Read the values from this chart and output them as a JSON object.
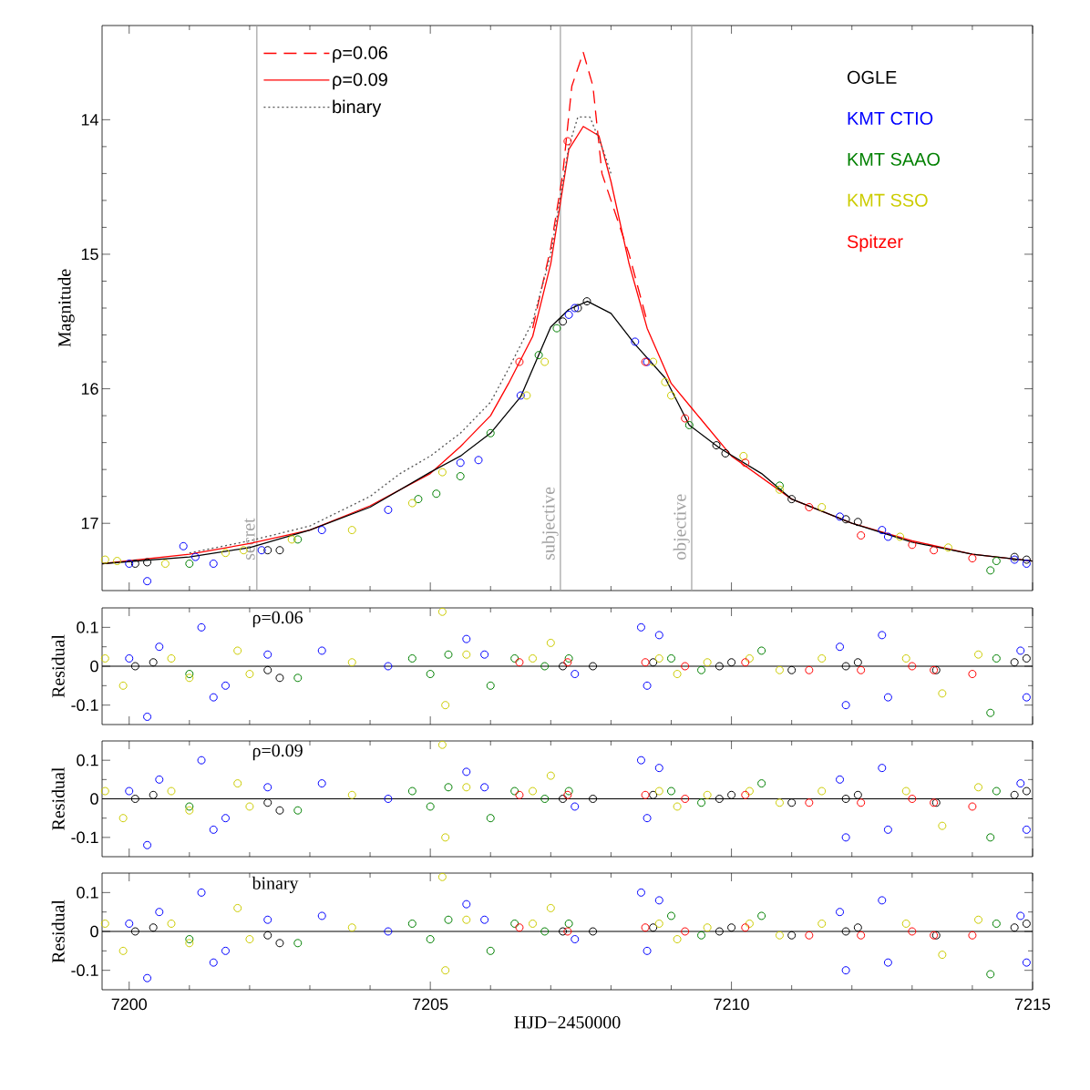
{
  "chart_data": [
    {
      "type": "scatter",
      "ylabel": "Magnitude",
      "xlim": [
        7199.55,
        7215
      ],
      "ylim": [
        17.5,
        13.3
      ],
      "xticks": [
        7200,
        7205,
        7210,
        7215
      ],
      "yticks": [
        14,
        15,
        16,
        17
      ],
      "tick_labels": "y",
      "marker": "circle",
      "legend": "top left",
      "series": [
        {
          "name": "OGLE",
          "color": "#000000",
          "x": [
            7200.1,
            7200.3,
            7202.3,
            7202.5,
            7207.2,
            7207.45,
            7207.6,
            7209.75,
            7209.9,
            7211.0,
            7211.9,
            7212.1,
            7214.7,
            7214.9
          ],
          "values": [
            17.3,
            17.29,
            17.2,
            17.2,
            15.5,
            15.4,
            15.35,
            16.42,
            16.48,
            16.82,
            16.97,
            16.99,
            17.25,
            17.27
          ]
        },
        {
          "name": "KMT CTIO",
          "color": "#0000ff",
          "x": [
            7200.0,
            7200.3,
            7200.9,
            7201.1,
            7201.4,
            7202.2,
            7203.2,
            7204.3,
            7205.5,
            7205.8,
            7206.5,
            7207.3,
            7207.4,
            7208.4,
            7208.6,
            7211.8,
            7212.5,
            7212.6,
            7214.7,
            7214.9
          ],
          "values": [
            17.3,
            17.43,
            17.17,
            17.25,
            17.3,
            17.2,
            17.05,
            16.9,
            16.55,
            16.53,
            16.05,
            15.45,
            15.4,
            15.65,
            15.8,
            16.95,
            17.05,
            17.1,
            17.27,
            17.3
          ]
        },
        {
          "name": "KMT SAAO",
          "color": "#008000",
          "x": [
            7201.0,
            7202.8,
            7204.8,
            7205.1,
            7205.5,
            7206.0,
            7206.8,
            7207.1,
            7209.3,
            7210.8,
            7214.3,
            7214.4
          ],
          "values": [
            17.3,
            17.12,
            16.82,
            16.78,
            16.65,
            16.33,
            15.75,
            15.55,
            16.27,
            16.72,
            17.35,
            17.28
          ]
        },
        {
          "name": "KMT SSO",
          "color": "#cccc00",
          "x": [
            7199.6,
            7199.8,
            7200.6,
            7201.6,
            7201.9,
            7202.7,
            7203.7,
            7204.7,
            7205.2,
            7206.6,
            7206.9,
            7208.7,
            7208.9,
            7209.0,
            7210.2,
            7210.8,
            7211.5,
            7212.8,
            7213.6
          ],
          "values": [
            17.27,
            17.28,
            17.3,
            17.22,
            17.2,
            17.12,
            17.05,
            16.85,
            16.62,
            16.05,
            15.8,
            15.8,
            15.95,
            16.05,
            16.5,
            16.75,
            16.88,
            17.1,
            17.18
          ]
        },
        {
          "name": "Spitzer",
          "color": "#ff0000",
          "x": [
            7206.48,
            7207.28,
            7208.57,
            7209.23,
            7210.23,
            7211.29,
            7212.15,
            7213.0,
            7213.36,
            7214.0
          ],
          "values": [
            15.8,
            14.16,
            15.8,
            16.22,
            16.55,
            16.88,
            17.09,
            17.16,
            17.2,
            17.26
          ]
        },
        {
          "name": "ρ=0.06",
          "type": "line",
          "marker": "none",
          "line_style": "dashed",
          "color": "#ff0000",
          "x": [
            7206.7,
            7207.0,
            7207.2,
            7207.35,
            7207.54,
            7207.7,
            7207.85,
            7208.0,
            7208.3,
            7208.6
          ],
          "values": [
            15.55,
            14.95,
            14.4,
            13.75,
            13.5,
            13.75,
            14.4,
            14.6,
            15.0,
            15.5
          ]
        },
        {
          "name": "ρ=0.09",
          "type": "line",
          "marker": "none",
          "line_style": "solid",
          "color": "#ff0000",
          "x": [
            7199.55,
            7201,
            7202,
            7203,
            7204,
            7205,
            7205.5,
            7206,
            7206.3,
            7206.7,
            7207.0,
            7207.3,
            7207.54,
            7207.8,
            7208.0,
            7208.3,
            7208.6,
            7209,
            7209.5,
            7210,
            7211,
            7212,
            7213,
            7214,
            7215
          ],
          "values": [
            17.3,
            17.23,
            17.15,
            17.05,
            16.87,
            16.63,
            16.43,
            16.2,
            15.96,
            15.61,
            15.07,
            14.22,
            14.05,
            14.12,
            14.46,
            15.07,
            15.55,
            15.96,
            16.23,
            16.5,
            16.82,
            17.0,
            17.13,
            17.23,
            17.28
          ]
        },
        {
          "name": "binary",
          "type": "line",
          "marker": "none",
          "line_style": "dotted",
          "color": "#555555",
          "x": [
            7201,
            7202,
            7203,
            7204,
            7204.5,
            7205,
            7205.5,
            7206,
            7206.3,
            7206.7,
            7207.0,
            7207.3,
            7207.45,
            7207.65,
            7207.85,
            7208.0
          ],
          "values": [
            17.22,
            17.13,
            17.02,
            16.8,
            16.63,
            16.5,
            16.33,
            16.1,
            15.85,
            15.5,
            15.0,
            14.2,
            13.98,
            13.98,
            14.2,
            14.4
          ]
        },
        {
          "type": "line",
          "marker": "none",
          "line_style": "solid",
          "color": "#000000",
          "x": [
            7199.55,
            7201,
            7202,
            7203,
            7204,
            7205,
            7205.5,
            7206,
            7206.5,
            7207.0,
            7207.3,
            7207.61,
            7208.0,
            7208.4,
            7208.9,
            7209.3,
            7209.8,
            7210.5,
            7211,
            7212,
            7213,
            7214,
            7215
          ],
          "values": [
            17.3,
            17.25,
            17.18,
            17.05,
            16.88,
            16.62,
            16.5,
            16.33,
            16.06,
            15.54,
            15.41,
            15.35,
            15.44,
            15.67,
            15.92,
            16.27,
            16.44,
            16.63,
            16.82,
            17.0,
            17.14,
            17.23,
            17.28
          ]
        }
      ],
      "ref_lines": [
        {
          "axis": "x",
          "value": 7202.12,
          "label": "secret",
          "color": "#a0a0a0"
        },
        {
          "axis": "x",
          "value": 7207.16,
          "label": "subjective",
          "color": "#a0a0a0"
        },
        {
          "axis": "x",
          "value": 7209.34,
          "label": "objective",
          "color": "#a0a0a0"
        }
      ]
    },
    {
      "type": "scatter",
      "ylabel": "Residual",
      "annotations": [
        "ρ=0.06"
      ],
      "xlim": [
        7199.55,
        7215
      ],
      "ylim": [
        -0.15,
        0.15
      ],
      "xticks": [
        7200,
        7205,
        7210,
        7215
      ],
      "yticks": [
        0.1,
        0,
        -0.1
      ],
      "tick_labels": "y",
      "marker": "circle",
      "series": [
        {
          "color": "#000000",
          "x": [
            7200.1,
            7200.4,
            7202.3,
            7202.5,
            7207.2,
            7207.7,
            7208.7,
            7209.8,
            7210.0,
            7211.0,
            7211.9,
            7212.1,
            7213.4,
            7214.7,
            7214.9
          ],
          "values": [
            0,
            0.01,
            -0.01,
            -0.03,
            0,
            0,
            0.01,
            0,
            0.01,
            -0.01,
            0,
            0.01,
            -0.01,
            0.01,
            0.02
          ]
        },
        {
          "color": "#0000ff",
          "x": [
            7200.0,
            7200.3,
            7200.5,
            7201.2,
            7201.4,
            7201.6,
            7202.3,
            7203.2,
            7204.3,
            7205.6,
            7205.9,
            7207.4,
            7208.5,
            7208.6,
            7208.8,
            7211.8,
            7211.9,
            7212.5,
            7212.6,
            7214.8,
            7214.9
          ],
          "values": [
            0.02,
            -0.13,
            0.05,
            0.1,
            -0.08,
            -0.05,
            0.03,
            0.04,
            0,
            0.07,
            0.03,
            -0.02,
            0.1,
            -0.05,
            0.08,
            0.05,
            -0.1,
            0.08,
            -0.08,
            0.04,
            -0.08
          ]
        },
        {
          "color": "#008000",
          "x": [
            7201.0,
            7202.8,
            7204.7,
            7205.0,
            7205.3,
            7206.0,
            7206.4,
            7206.9,
            7207.3,
            7209.0,
            7209.5,
            7210.5,
            7214.3,
            7214.4
          ],
          "values": [
            -0.02,
            -0.03,
            0.02,
            -0.02,
            0.03,
            -0.05,
            0.02,
            0,
            0.02,
            0.02,
            -0.01,
            0.04,
            -0.12,
            0.02
          ]
        },
        {
          "color": "#cccc00",
          "x": [
            7199.6,
            7199.9,
            7200.7,
            7201.0,
            7201.8,
            7202.0,
            7203.7,
            7205.2,
            7205.25,
            7205.6,
            7206.7,
            7207.0,
            7208.8,
            7209.1,
            7209.6,
            7210.3,
            7210.8,
            7211.5,
            7212.9,
            7213.5,
            7214.1
          ],
          "values": [
            0.02,
            -0.05,
            0.02,
            -0.03,
            0.04,
            -0.02,
            0.01,
            0.14,
            -0.1,
            0.03,
            0.02,
            0.06,
            0.02,
            -0.02,
            0.01,
            0.02,
            -0.01,
            0.02,
            0.02,
            -0.07,
            0.03
          ]
        },
        {
          "color": "#ff0000",
          "x": [
            7206.48,
            7207.28,
            7208.57,
            7209.23,
            7210.23,
            7211.29,
            7212.15,
            7213.0,
            7213.36,
            7214.0
          ],
          "values": [
            0.01,
            0.01,
            0.01,
            0,
            0.01,
            -0.01,
            -0.01,
            0,
            -0.01,
            -0.02
          ]
        }
      ],
      "ref_lines": [
        {
          "axis": "y",
          "value": 0,
          "color": "#000000"
        }
      ]
    },
    {
      "type": "scatter",
      "ylabel": "Residual",
      "annotations": [
        "ρ=0.09"
      ],
      "xlim": [
        7199.55,
        7215
      ],
      "ylim": [
        -0.15,
        0.15
      ],
      "xticks": [
        7200,
        7205,
        7210,
        7215
      ],
      "yticks": [
        0.1,
        0,
        -0.1
      ],
      "tick_labels": "y",
      "marker": "circle",
      "series": [
        {
          "color": "#000000",
          "x": [
            7200.1,
            7200.4,
            7202.3,
            7202.5,
            7207.2,
            7207.7,
            7208.7,
            7209.8,
            7210.0,
            7211.0,
            7211.9,
            7212.1,
            7213.4,
            7214.7,
            7214.9
          ],
          "values": [
            0,
            0.01,
            -0.01,
            -0.03,
            0,
            0,
            0.01,
            0,
            0.01,
            -0.01,
            0,
            0.01,
            -0.01,
            0.01,
            0.02
          ]
        },
        {
          "color": "#0000ff",
          "x": [
            7200.0,
            7200.3,
            7200.5,
            7201.2,
            7201.4,
            7201.6,
            7202.3,
            7203.2,
            7204.3,
            7205.6,
            7205.9,
            7207.4,
            7208.5,
            7208.6,
            7208.8,
            7211.8,
            7211.9,
            7212.5,
            7212.6,
            7214.8,
            7214.9
          ],
          "values": [
            0.02,
            -0.12,
            0.05,
            0.1,
            -0.08,
            -0.05,
            0.03,
            0.04,
            0,
            0.07,
            0.03,
            -0.02,
            0.1,
            -0.05,
            0.08,
            0.05,
            -0.1,
            0.08,
            -0.08,
            0.04,
            -0.08
          ]
        },
        {
          "color": "#008000",
          "x": [
            7201.0,
            7202.8,
            7204.7,
            7205.0,
            7205.3,
            7206.0,
            7206.4,
            7206.9,
            7207.3,
            7209.0,
            7209.5,
            7210.5,
            7214.3,
            7214.4
          ],
          "values": [
            -0.02,
            -0.03,
            0.02,
            -0.02,
            0.03,
            -0.05,
            0.02,
            0,
            0.02,
            0.02,
            -0.01,
            0.04,
            -0.1,
            0.02
          ]
        },
        {
          "color": "#cccc00",
          "x": [
            7199.6,
            7199.9,
            7200.7,
            7201.0,
            7201.8,
            7202.0,
            7203.7,
            7205.2,
            7205.25,
            7205.6,
            7206.7,
            7207.0,
            7208.8,
            7209.1,
            7209.6,
            7210.3,
            7210.8,
            7211.5,
            7212.9,
            7213.5,
            7214.1
          ],
          "values": [
            0.02,
            -0.05,
            0.02,
            -0.03,
            0.04,
            -0.02,
            0.01,
            0.14,
            -0.1,
            0.03,
            0.02,
            0.06,
            0.02,
            -0.02,
            0.01,
            0.02,
            -0.01,
            0.02,
            0.02,
            -0.07,
            0.03
          ]
        },
        {
          "color": "#ff0000",
          "x": [
            7206.48,
            7207.28,
            7208.57,
            7209.23,
            7210.23,
            7211.29,
            7212.15,
            7213.0,
            7213.36,
            7214.0
          ],
          "values": [
            0.01,
            0.01,
            0.01,
            0,
            0.01,
            -0.01,
            -0.01,
            0,
            -0.01,
            -0.02
          ]
        }
      ],
      "ref_lines": [
        {
          "axis": "y",
          "value": 0,
          "color": "#000000"
        }
      ]
    },
    {
      "type": "scatter",
      "ylabel": "Residual",
      "xlabel": "HJD−2450000",
      "annotations": [
        "binary"
      ],
      "xlim": [
        7199.55,
        7215
      ],
      "ylim": [
        -0.15,
        0.15
      ],
      "xticks": [
        7200,
        7205,
        7210,
        7215
      ],
      "yticks": [
        0.1,
        0,
        -0.1
      ],
      "marker": "circle",
      "series": [
        {
          "color": "#000000",
          "x": [
            7200.1,
            7200.4,
            7202.3,
            7202.5,
            7207.2,
            7207.7,
            7208.7,
            7209.8,
            7210.0,
            7211.0,
            7211.9,
            7212.1,
            7213.4,
            7214.7,
            7214.9
          ],
          "values": [
            0,
            0.01,
            -0.01,
            -0.03,
            0,
            0,
            0.01,
            0,
            0.01,
            -0.01,
            0,
            0.01,
            -0.01,
            0.01,
            0.02
          ]
        },
        {
          "color": "#0000ff",
          "x": [
            7200.0,
            7200.3,
            7200.5,
            7201.2,
            7201.4,
            7201.6,
            7202.3,
            7203.2,
            7204.3,
            7205.6,
            7205.9,
            7207.4,
            7208.5,
            7208.6,
            7208.8,
            7211.8,
            7211.9,
            7212.5,
            7212.6,
            7214.8,
            7214.9
          ],
          "values": [
            0.02,
            -0.12,
            0.05,
            0.1,
            -0.08,
            -0.05,
            0.03,
            0.04,
            0,
            0.07,
            0.03,
            -0.02,
            0.1,
            -0.05,
            0.08,
            0.05,
            -0.1,
            0.08,
            -0.08,
            0.04,
            -0.08
          ]
        },
        {
          "color": "#008000",
          "x": [
            7201.0,
            7202.8,
            7204.7,
            7205.0,
            7205.3,
            7206.0,
            7206.4,
            7206.9,
            7207.3,
            7209.0,
            7209.5,
            7210.5,
            7214.3,
            7214.4
          ],
          "values": [
            -0.02,
            -0.03,
            0.02,
            -0.02,
            0.03,
            -0.05,
            0.02,
            0,
            0.02,
            0.04,
            -0.01,
            0.04,
            -0.11,
            0.02
          ]
        },
        {
          "color": "#cccc00",
          "x": [
            7199.6,
            7199.9,
            7200.7,
            7201.0,
            7201.8,
            7202.0,
            7203.7,
            7205.2,
            7205.25,
            7205.6,
            7206.7,
            7207.0,
            7208.8,
            7209.1,
            7209.6,
            7210.3,
            7210.8,
            7211.5,
            7212.9,
            7213.5,
            7214.1
          ],
          "values": [
            0.02,
            -0.05,
            0.02,
            -0.03,
            0.06,
            -0.02,
            0.01,
            0.14,
            -0.1,
            0.03,
            0.02,
            0.06,
            0.02,
            -0.02,
            0.01,
            0.02,
            -0.01,
            0.02,
            0.02,
            -0.06,
            0.03
          ]
        },
        {
          "color": "#ff0000",
          "x": [
            7206.48,
            7207.28,
            7208.57,
            7209.23,
            7210.23,
            7211.29,
            7212.15,
            7213.0,
            7213.36,
            7214.0
          ],
          "values": [
            0.01,
            0,
            0.01,
            0,
            0.01,
            -0.01,
            -0.01,
            0,
            -0.01,
            -0.01
          ]
        }
      ],
      "ref_lines": [
        {
          "axis": "y",
          "value": 0,
          "color": "#000000"
        }
      ]
    }
  ]
}
